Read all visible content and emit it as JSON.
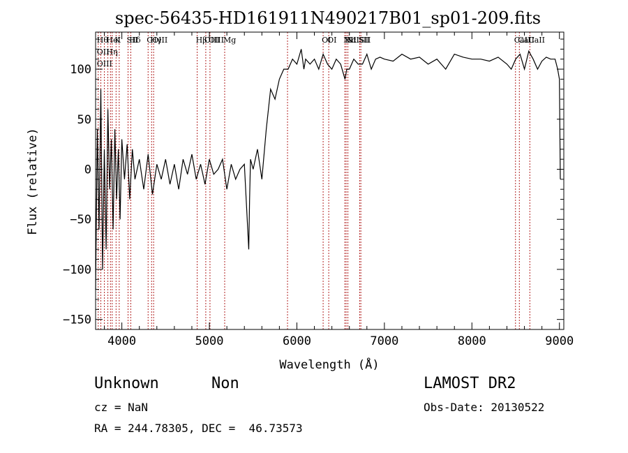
{
  "chart_data": {
    "type": "line",
    "title": "spec-56435-HD161911N490217B01_sp01-209.fits",
    "xlabel": "Wavelength (Å)",
    "ylabel": "Flux (relative)",
    "xlim": [
      3700,
      9050
    ],
    "ylim": [
      -160,
      137
    ],
    "x_ticks": [
      "4000",
      "5000",
      "6000",
      "7000",
      "8000",
      "9000"
    ],
    "x_tick_values": [
      4000,
      5000,
      6000,
      7000,
      8000,
      9000
    ],
    "y_ticks": [
      "−150",
      "−100",
      "−50",
      "0",
      "50",
      "100"
    ],
    "y_tick_values": [
      -150,
      -100,
      -50,
      0,
      50,
      100
    ],
    "series": [
      {
        "x": [
          3700,
          3720,
          3740,
          3760,
          3780,
          3800,
          3820,
          3840,
          3860,
          3880,
          3900,
          3920,
          3940,
          3960,
          3980,
          4000,
          4030,
          4060,
          4090,
          4120,
          4150,
          4200,
          4250,
          4300,
          4350,
          4400,
          4450,
          4500,
          4550,
          4600,
          4650,
          4700,
          4750,
          4800,
          4850,
          4900,
          4950,
          5000,
          5050,
          5100,
          5150,
          5200,
          5250,
          5300,
          5350,
          5400,
          5450,
          5460,
          5470,
          5500,
          5550,
          5600,
          5650,
          5700,
          5750,
          5800,
          5850,
          5900,
          5950,
          6000,
          6050,
          6080,
          6100,
          6150,
          6200,
          6250,
          6300,
          6350,
          6400,
          6450,
          6500,
          6550,
          6570,
          6600,
          6650,
          6700,
          6750,
          6800,
          6850,
          6900,
          6950,
          7000,
          7100,
          7200,
          7300,
          7400,
          7500,
          7600,
          7700,
          7800,
          7900,
          8000,
          8100,
          8200,
          8300,
          8400,
          8450,
          8500,
          8550,
          8600,
          8650,
          8700,
          8750,
          8800,
          8850,
          8900,
          8950,
          8980,
          9000,
          9010
        ],
        "y": [
          -120,
          40,
          -60,
          80,
          -100,
          20,
          -80,
          60,
          -20,
          30,
          -60,
          40,
          -30,
          20,
          -50,
          30,
          -10,
          25,
          -30,
          20,
          -10,
          10,
          -20,
          15,
          -25,
          5,
          -10,
          10,
          -15,
          5,
          -20,
          10,
          -5,
          15,
          -10,
          5,
          -15,
          10,
          -5,
          0,
          10,
          -20,
          5,
          -10,
          0,
          5,
          -80,
          -30,
          10,
          0,
          20,
          -10,
          40,
          80,
          70,
          90,
          100,
          100,
          110,
          105,
          120,
          100,
          110,
          105,
          110,
          100,
          115,
          105,
          100,
          110,
          105,
          90,
          100,
          100,
          110,
          105,
          105,
          115,
          100,
          110,
          112,
          110,
          108,
          115,
          110,
          112,
          105,
          110,
          100,
          115,
          112,
          110,
          110,
          108,
          112,
          105,
          100,
          110,
          115,
          100,
          118,
          110,
          100,
          108,
          112,
          110,
          110,
          100,
          90,
          -10
        ]
      }
    ],
    "reference_lines": [
      {
        "x": 3730,
        "labels": [
          "Hθ",
          "OII",
          "OIII"
        ]
      },
      {
        "x": 3760,
        "labels": []
      },
      {
        "x": 3800,
        "labels": []
      },
      {
        "x": 3840,
        "labels": [
          "HeI",
          "Hη"
        ]
      },
      {
        "x": 3870,
        "labels": []
      },
      {
        "x": 3890,
        "labels": []
      },
      {
        "x": 3934,
        "labels": [
          "K"
        ]
      },
      {
        "x": 3970,
        "labels": []
      },
      {
        "x": 4071,
        "labels": [
          "SII"
        ]
      },
      {
        "x": 4102,
        "labels": [
          "Hδ"
        ]
      },
      {
        "x": 4300,
        "labels": [
          "G"
        ]
      },
      {
        "x": 4340,
        "labels": [
          "Hγ"
        ]
      },
      {
        "x": 4363,
        "labels": [
          "OIII"
        ]
      },
      {
        "x": 4861,
        "labels": [
          "Hβ"
        ]
      },
      {
        "x": 4959,
        "labels": [
          "OIII"
        ]
      },
      {
        "x": 5007,
        "labels": [
          "OIII"
        ]
      },
      {
        "x": 5175,
        "labels": [
          "Mg"
        ]
      },
      {
        "x": 5893,
        "labels": []
      },
      {
        "x": 6300,
        "labels": [
          "OI"
        ]
      },
      {
        "x": 6364,
        "labels": [
          "OI"
        ]
      },
      {
        "x": 6548,
        "labels": [
          "NII"
        ]
      },
      {
        "x": 6563,
        "labels": [
          "Hα"
        ]
      },
      {
        "x": 6583,
        "labels": [
          "NII"
        ]
      },
      {
        "x": 6717,
        "labels": [
          "SII"
        ]
      },
      {
        "x": 6731,
        "labels": [
          "SII"
        ]
      },
      {
        "x": 8498,
        "labels": [
          "CaII"
        ]
      },
      {
        "x": 8542,
        "labels": [
          "CaII"
        ]
      },
      {
        "x": 8662,
        "labels": [
          "CaII"
        ]
      }
    ],
    "reference_line_color": "#b22222",
    "line_color": "#000000"
  },
  "info": {
    "object_class": "Unknown",
    "subclass": "Non",
    "survey": "LAMOST DR2",
    "cz": "cz = NaN",
    "obs_date": "Obs-Date: 20130522",
    "coords": "RA = 244.78305, DEC =  46.73573"
  }
}
